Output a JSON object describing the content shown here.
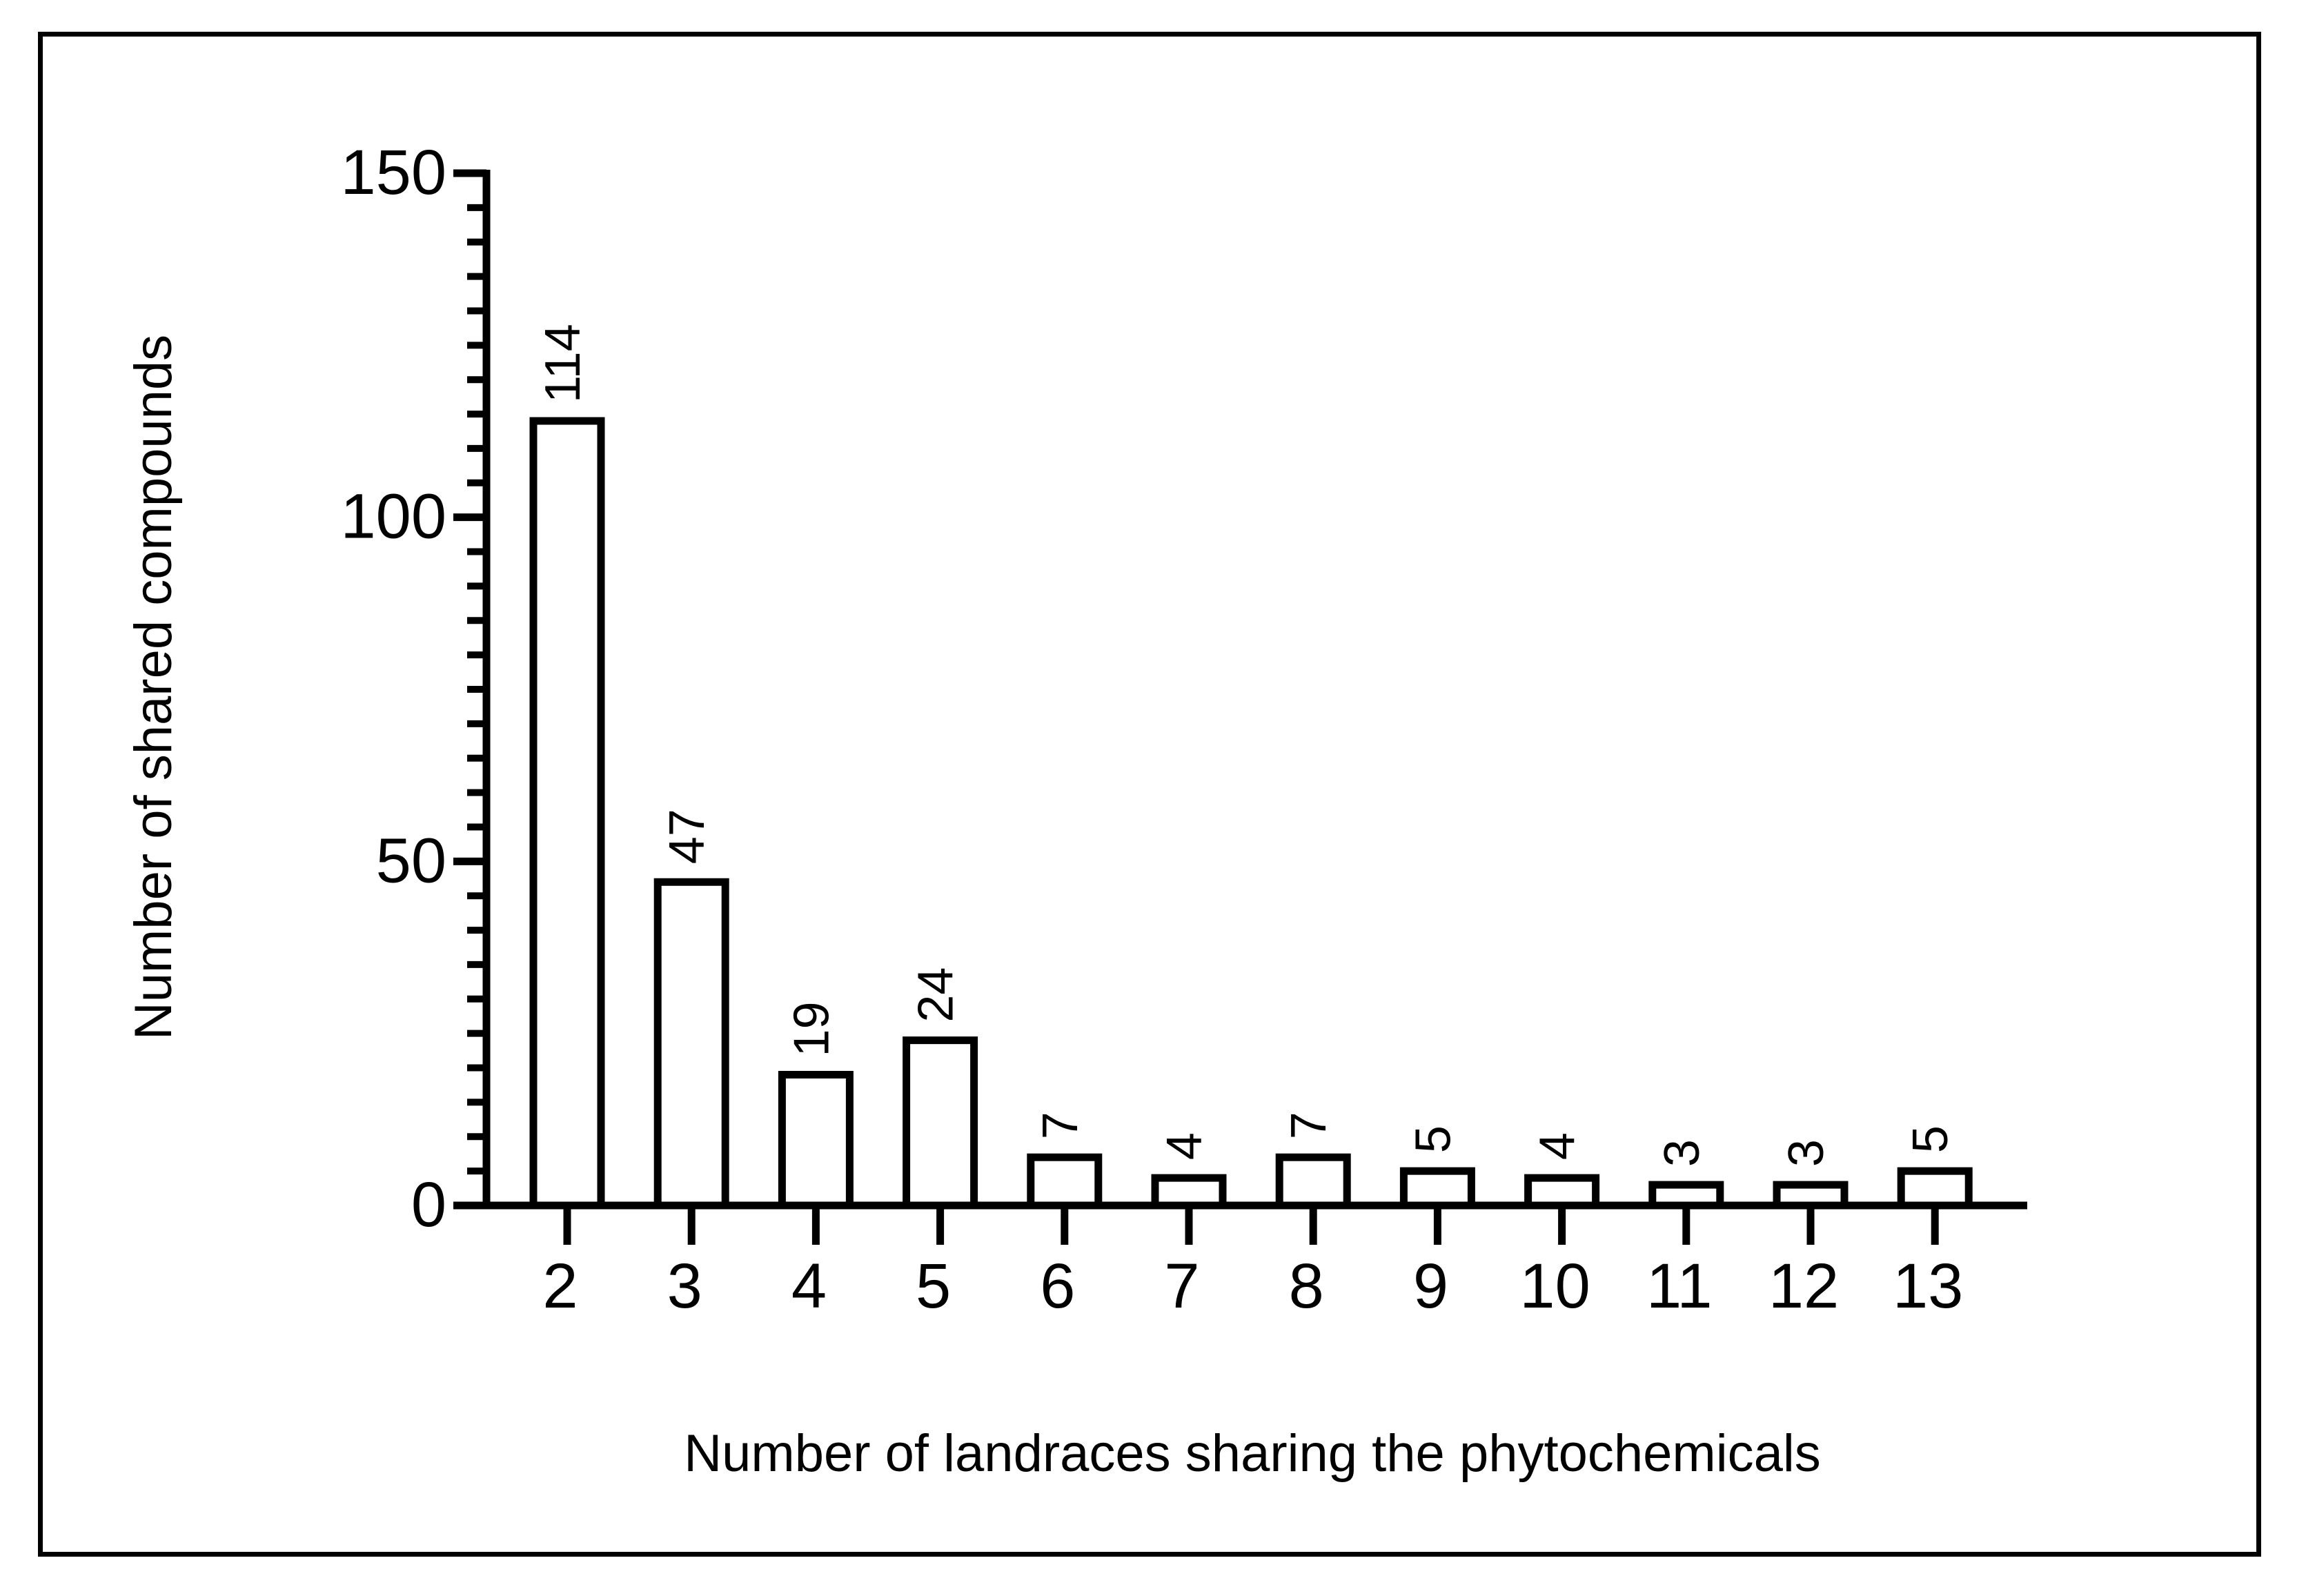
{
  "chart_data": {
    "type": "bar",
    "title": "",
    "xlabel": "Number of landraces sharing the phytochemicals",
    "ylabel": "Number of shared compounds",
    "categories": [
      "2",
      "3",
      "4",
      "5",
      "6",
      "7",
      "8",
      "9",
      "10",
      "11",
      "12",
      "13"
    ],
    "values": [
      114,
      47,
      19,
      24,
      7,
      4,
      7,
      5,
      4,
      3,
      3,
      5
    ],
    "data_labels": [
      "114",
      "47",
      "19",
      "24",
      "7",
      "4",
      "7",
      "5",
      "4",
      "3",
      "3",
      "5"
    ],
    "ylim": [
      0,
      150
    ],
    "yticks": [
      "0",
      "50",
      "100",
      "150"
    ],
    "y_minor_step": 5,
    "grid": false,
    "legend": "none",
    "bar_fill": "#ffffff",
    "bar_stroke": "#000000"
  }
}
